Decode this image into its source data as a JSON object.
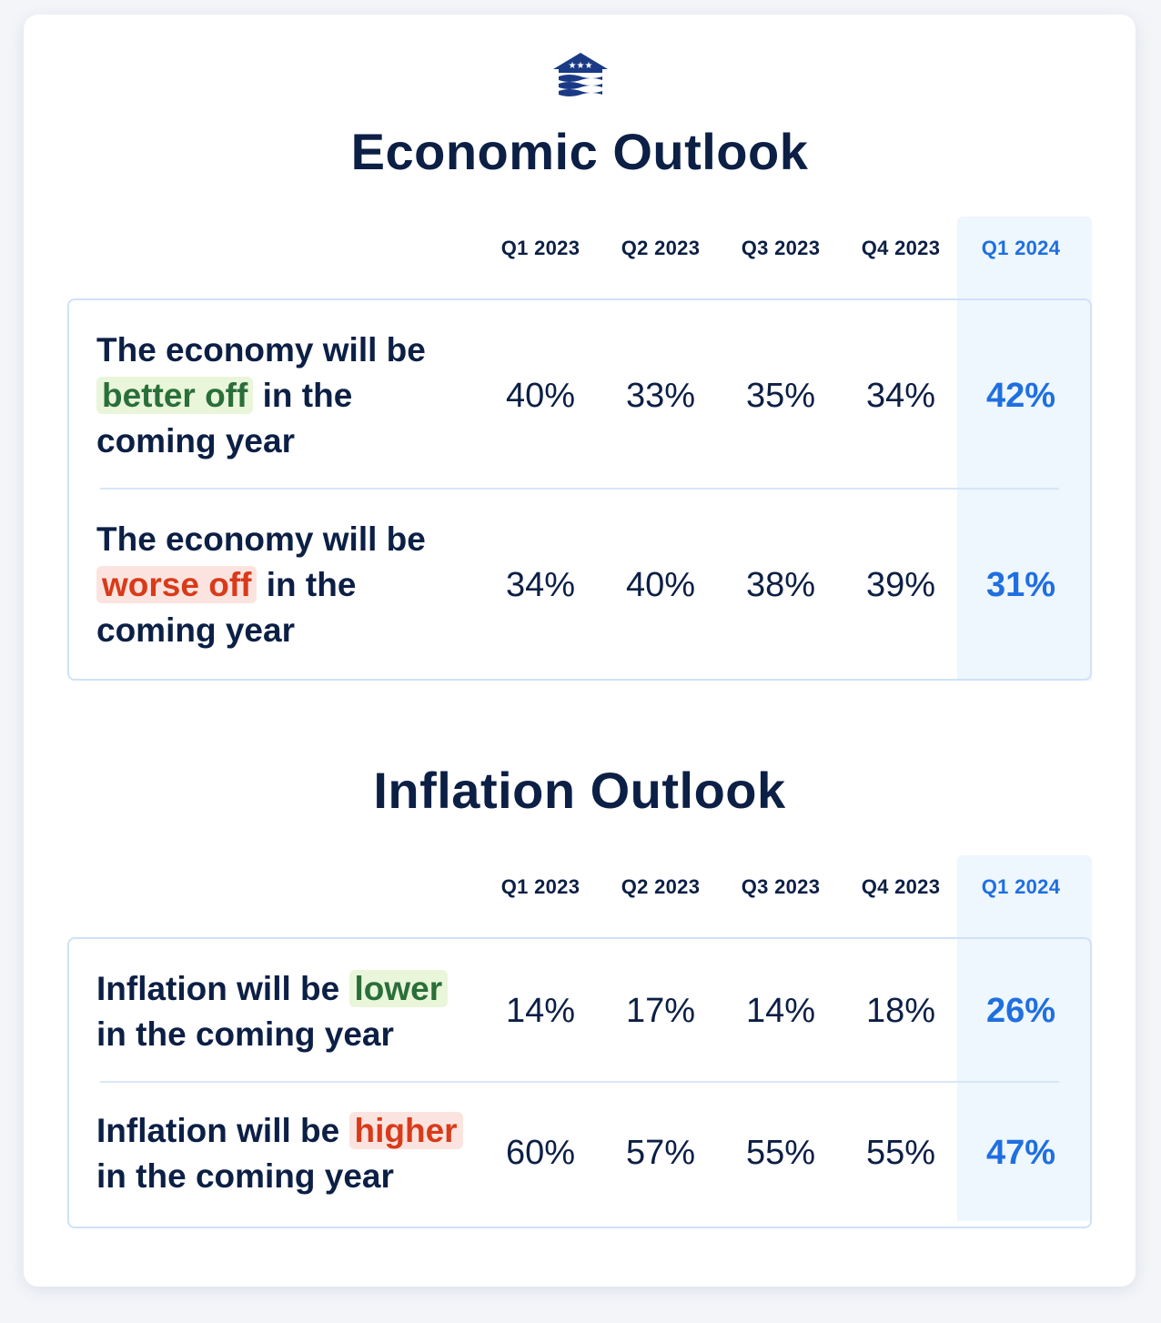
{
  "colors": {
    "navy": "#0c1f45",
    "highlight_blue": "#1f6fe0",
    "highlight_bg": "#eef6fe",
    "good_bg": "#e9f6d9",
    "good_text": "#2a6e3a",
    "bad_bg": "#fbe4df",
    "bad_text": "#d93a1a"
  },
  "logo": {
    "icon": "house-flag-icon"
  },
  "chart_data": [
    {
      "type": "table",
      "title": "Economic Outlook",
      "columns": [
        "Q1 2023",
        "Q2 2023",
        "Q3 2023",
        "Q4 2023",
        "Q1 2024"
      ],
      "highlight_column": "Q1 2024",
      "rows": [
        {
          "label_before": "The economy will be",
          "label_key": "better off",
          "label_after": "in the coming year",
          "tone": "good",
          "values": [
            "40%",
            "33%",
            "35%",
            "34%",
            "42%"
          ]
        },
        {
          "label_before": "The economy will be",
          "label_key": "worse off",
          "label_after": "in the coming year",
          "tone": "bad",
          "values": [
            "34%",
            "40%",
            "38%",
            "39%",
            "31%"
          ]
        }
      ]
    },
    {
      "type": "table",
      "title": "Inflation Outlook",
      "columns": [
        "Q1 2023",
        "Q2 2023",
        "Q3 2023",
        "Q4 2023",
        "Q1 2024"
      ],
      "highlight_column": "Q1 2024",
      "rows": [
        {
          "label_before": "Inflation will be",
          "label_key": "lower",
          "label_after": "in the coming year",
          "tone": "good",
          "values": [
            "14%",
            "17%",
            "14%",
            "18%",
            "26%"
          ]
        },
        {
          "label_before": "Inflation will be",
          "label_key": "higher",
          "label_after": "in the coming year",
          "tone": "bad",
          "values": [
            "60%",
            "57%",
            "55%",
            "55%",
            "47%"
          ]
        }
      ]
    }
  ]
}
